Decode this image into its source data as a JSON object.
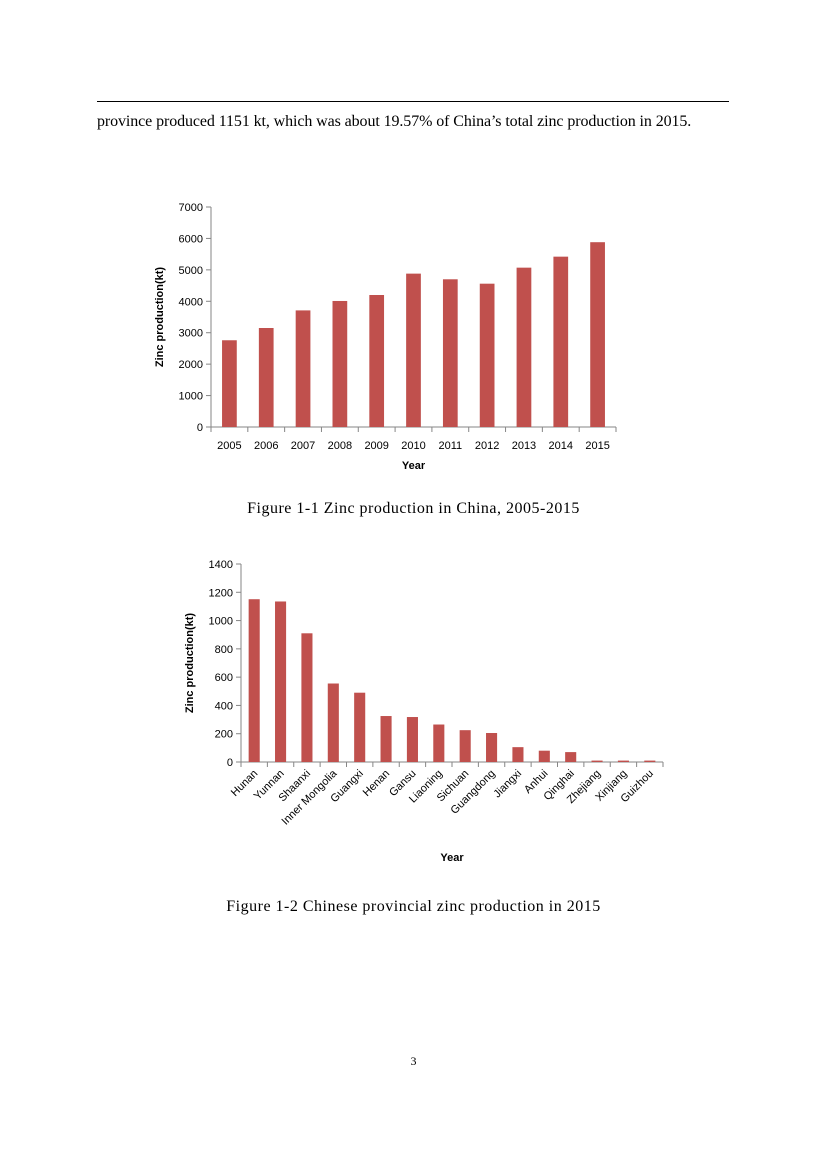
{
  "page": {
    "body_text": "province produced 1151 kt, which was about 19.57% of China’s total zinc production in 2015.",
    "page_number": "3"
  },
  "figures": [
    {
      "caption": "Figure 1-1 Zinc production in China, 2005-2015"
    },
    {
      "caption": "Figure 1-2 Chinese provincial zinc production in 2015"
    }
  ],
  "colors": {
    "bar": "#C0504D",
    "axis": "#868686"
  },
  "chart_data": [
    {
      "type": "bar",
      "title": "",
      "xlabel": "Year",
      "ylabel": "Zinc production(kt)",
      "ylim": [
        0,
        7000
      ],
      "yticks": [
        0,
        1000,
        2000,
        3000,
        4000,
        5000,
        6000,
        7000
      ],
      "categories": [
        "2005",
        "2006",
        "2007",
        "2008",
        "2009",
        "2010",
        "2011",
        "2012",
        "2013",
        "2014",
        "2015"
      ],
      "values": [
        2760,
        3150,
        3710,
        4010,
        4200,
        4880,
        4700,
        4560,
        5070,
        5420,
        5880
      ],
      "grid": false
    },
    {
      "type": "bar",
      "title": "",
      "xlabel": "Year",
      "ylabel": "Zinc production(kt)",
      "ylim": [
        0,
        1400
      ],
      "yticks": [
        0,
        200,
        400,
        600,
        800,
        1000,
        1200,
        1400
      ],
      "categories": [
        "Hunan",
        "Yunnan",
        "Shaanxi",
        "Inner Mongolia",
        "Guangxi",
        "Henan",
        "Gansu",
        "Liaoning",
        "Sichuan",
        "Guangdong",
        "Jiangxi",
        "Anhui",
        "Qinghai",
        "Zhejiang",
        "Xinjiang",
        "Guizhou"
      ],
      "values": [
        1151,
        1135,
        910,
        555,
        490,
        325,
        318,
        265,
        225,
        205,
        105,
        80,
        70,
        10,
        10,
        10
      ],
      "grid": false
    }
  ]
}
